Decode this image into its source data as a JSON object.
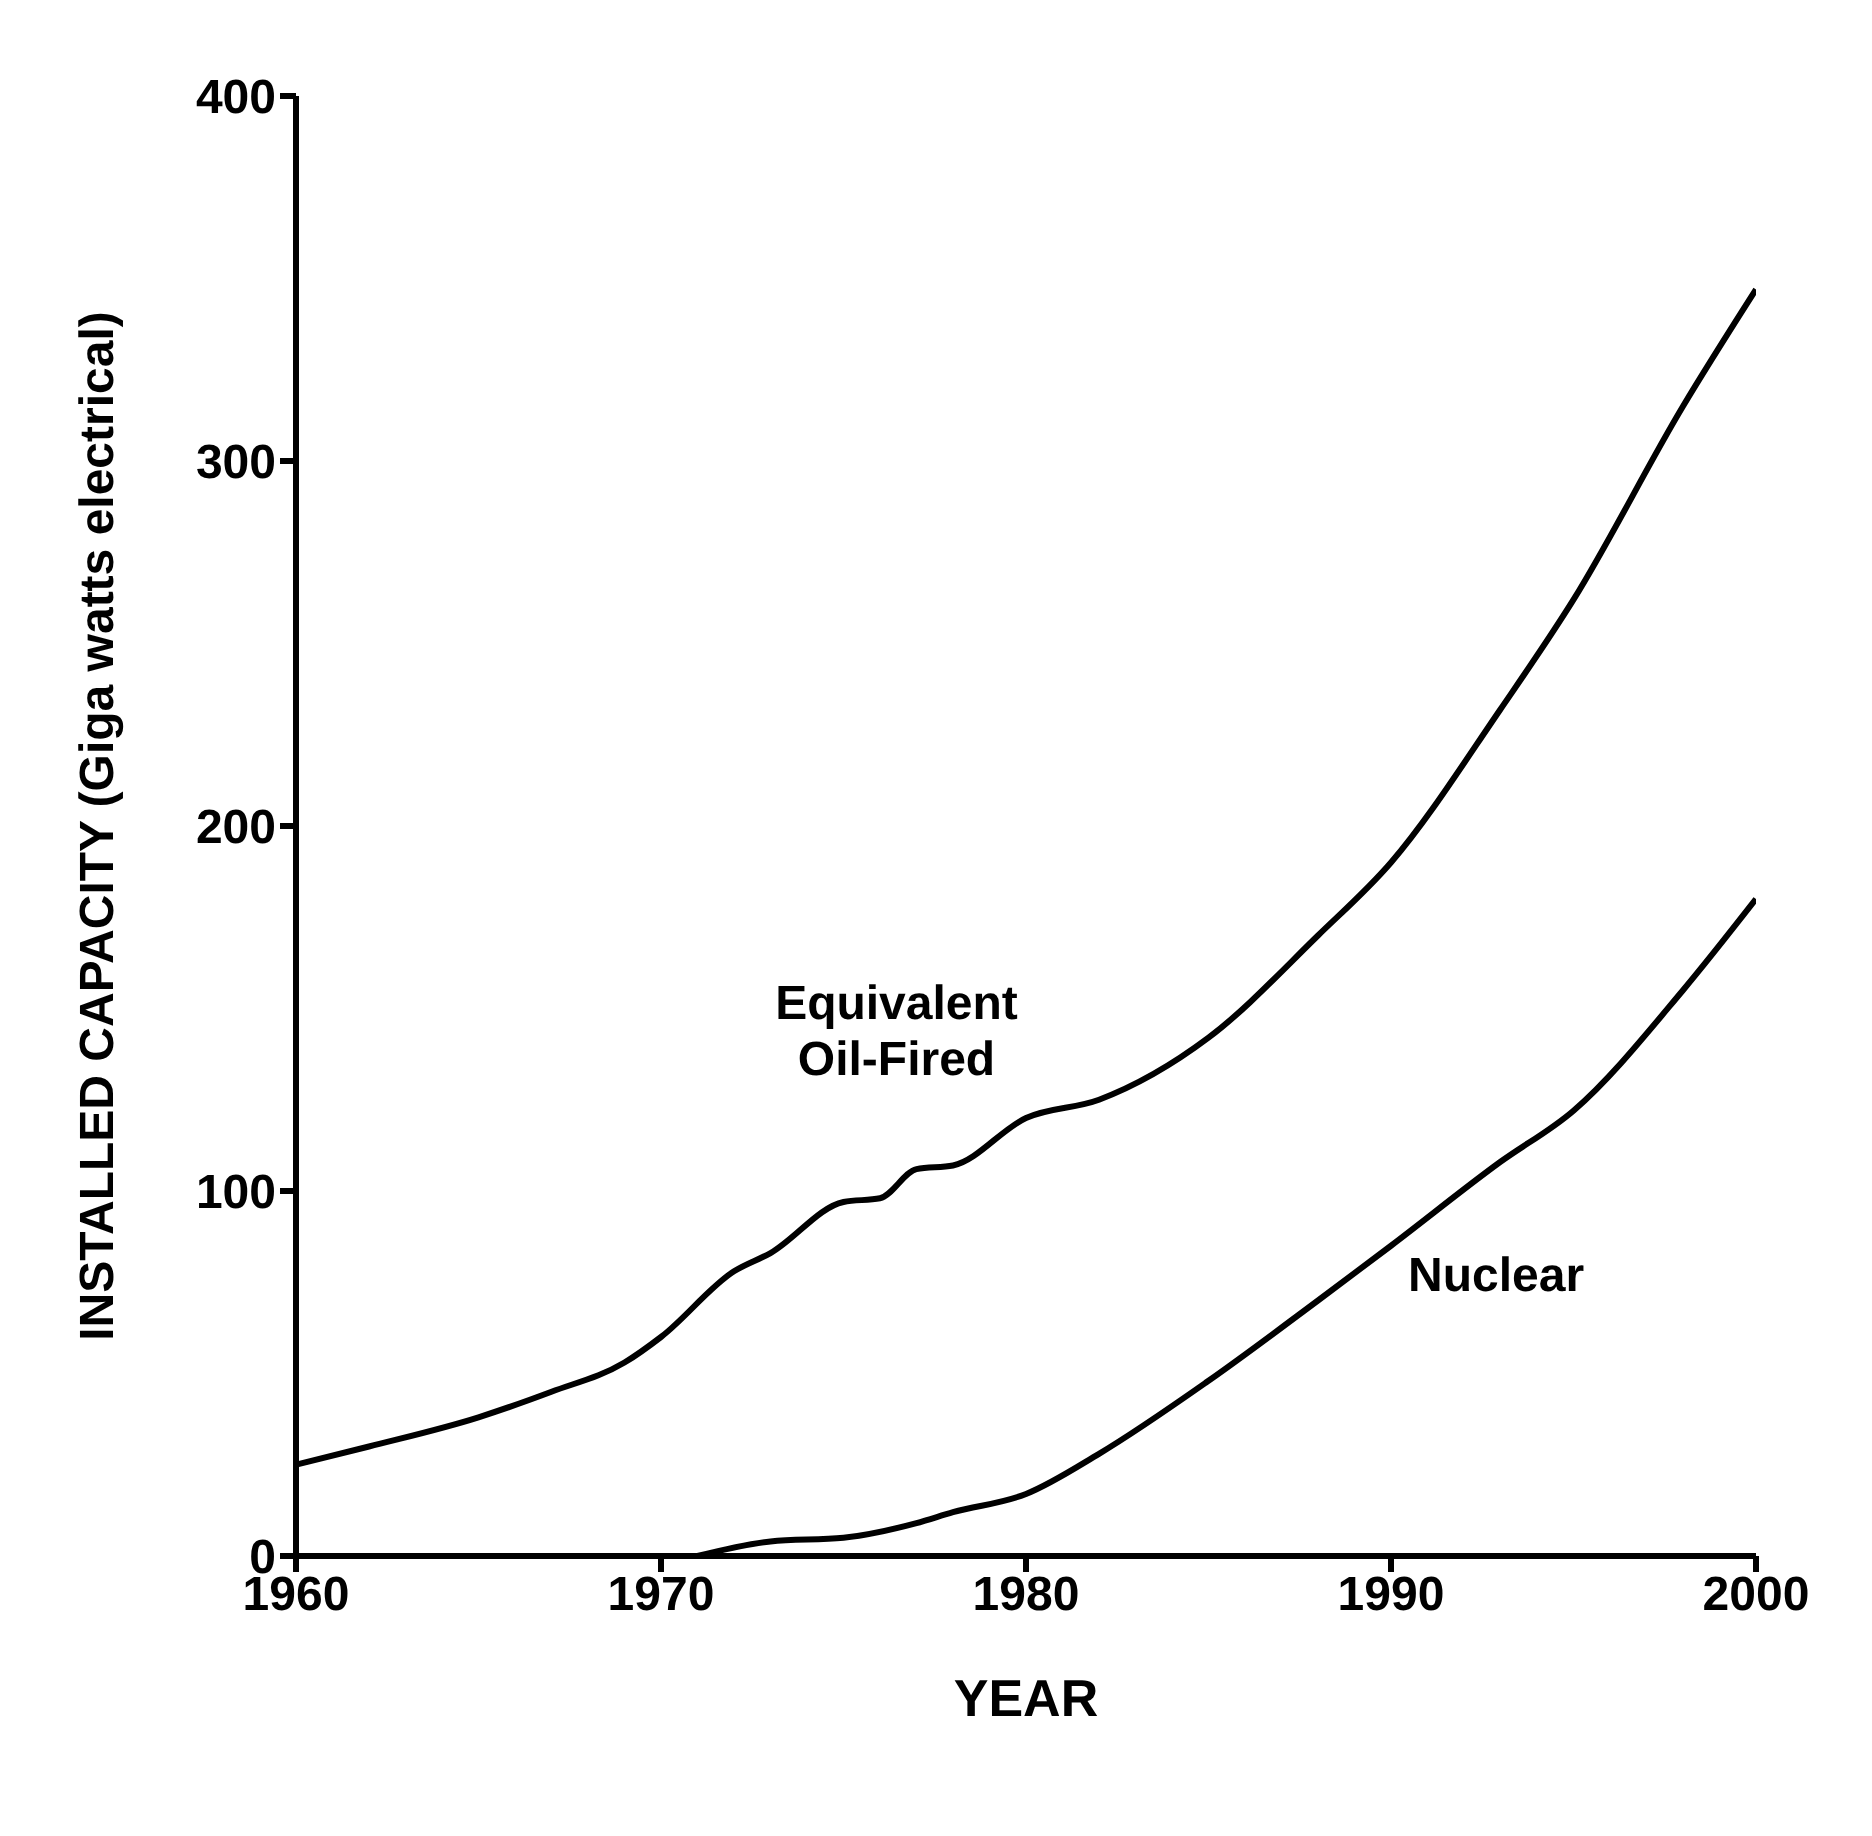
{
  "chart_data": {
    "type": "line",
    "xlabel": "YEAR",
    "ylabel": "INSTALLED CAPACITY (Giga watts electrical)",
    "xlim": [
      1960,
      2000
    ],
    "xticks": [
      1960,
      1970,
      1980,
      1990,
      2000
    ],
    "ylim": [
      0,
      400
    ],
    "yticks": [
      0,
      100,
      200,
      300,
      400
    ],
    "marker": "none",
    "line_style": "solid",
    "series": [
      {
        "name": "Equivalent Oil-Fired",
        "color": "#000000",
        "x": [
          1960,
          1962,
          1965,
          1967,
          1969,
          1970,
          1972,
          1973,
          1975,
          1976,
          1977,
          1978,
          1980,
          1982,
          1985,
          1988,
          1990,
          1993,
          1995,
          1998,
          2000
        ],
        "values": [
          25,
          30,
          38,
          45,
          53,
          60,
          78,
          83,
          97,
          98,
          106,
          107,
          120,
          125,
          142,
          170,
          190,
          232,
          262,
          315,
          347
        ]
      },
      {
        "name": "Nuclear",
        "color": "#000000",
        "x": [
          1971,
          1973,
          1975,
          1977,
          1978,
          1980,
          1982,
          1985,
          1988,
          1990,
          1993,
          1995,
          1998,
          2000
        ],
        "values": [
          0,
          4,
          5,
          9,
          12,
          17,
          28,
          48,
          70,
          85,
          108,
          122,
          155,
          180
        ]
      }
    ]
  }
}
